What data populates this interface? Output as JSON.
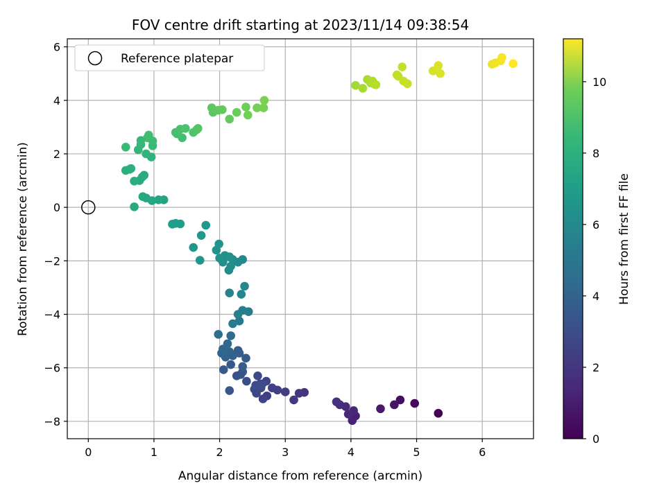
{
  "chart_data": {
    "type": "scatter",
    "title": "FOV centre drift starting at 2023/11/14 09:38:54",
    "xlabel": "Angular distance from reference (arcmin)",
    "ylabel": "Rotation from reference (arcmin)",
    "xlim": [
      -0.32,
      6.78
    ],
    "ylim": [
      -8.65,
      6.3
    ],
    "xticks": [
      0,
      1,
      2,
      3,
      4,
      5,
      6
    ],
    "yticks": [
      -8,
      -6,
      -4,
      -2,
      0,
      2,
      4,
      6
    ],
    "grid": true,
    "legend": {
      "placement": "top-left",
      "entries": [
        "Reference platepar"
      ]
    },
    "reference_point": {
      "x": 0,
      "y": 0
    },
    "colorbar": {
      "label": "Hours from first FF file",
      "colormap": "viridis",
      "range": [
        0,
        11.2
      ],
      "ticks": [
        0,
        2,
        4,
        6,
        8,
        10
      ]
    },
    "series": [
      {
        "points": [
          [
            5.33,
            -7.7,
            0.0
          ],
          [
            4.97,
            -7.33,
            0.2
          ],
          [
            4.75,
            -7.2,
            0.4
          ],
          [
            4.66,
            -7.38,
            0.6
          ],
          [
            4.45,
            -7.53,
            0.8
          ],
          [
            4.07,
            -7.8,
            1.0
          ],
          [
            4.02,
            -7.97,
            1.1
          ],
          [
            4.04,
            -7.6,
            1.2
          ],
          [
            3.96,
            -7.73,
            1.3
          ],
          [
            3.92,
            -7.45,
            1.4
          ],
          [
            3.83,
            -7.38,
            1.5
          ],
          [
            3.78,
            -7.27,
            1.6
          ],
          [
            3.29,
            -6.92,
            1.7
          ],
          [
            3.21,
            -6.95,
            1.8
          ],
          [
            3.13,
            -7.2,
            1.9
          ],
          [
            3.0,
            -6.9,
            2.0
          ],
          [
            2.88,
            -6.83,
            2.1
          ],
          [
            2.8,
            -6.75,
            2.15
          ],
          [
            2.72,
            -7.05,
            2.2
          ],
          [
            2.66,
            -7.16,
            2.25
          ],
          [
            2.71,
            -6.5,
            2.3
          ],
          [
            2.62,
            -6.6,
            2.35
          ],
          [
            2.56,
            -6.95,
            2.4
          ],
          [
            2.53,
            -6.8,
            2.45
          ],
          [
            2.58,
            -6.3,
            2.5
          ],
          [
            2.63,
            -6.75,
            2.55
          ],
          [
            2.65,
            -6.6,
            2.6
          ],
          [
            2.55,
            -6.65,
            2.65
          ],
          [
            2.41,
            -6.5,
            2.7
          ],
          [
            2.32,
            -6.25,
            2.75
          ],
          [
            2.26,
            -6.3,
            2.8
          ],
          [
            2.35,
            -6.15,
            2.9
          ],
          [
            2.15,
            -6.85,
            3.0
          ],
          [
            2.17,
            -5.88,
            3.1
          ],
          [
            2.06,
            -6.07,
            3.15
          ],
          [
            2.4,
            -5.64,
            3.2
          ],
          [
            2.35,
            -5.95,
            3.25
          ],
          [
            2.28,
            -5.35,
            3.3
          ],
          [
            2.3,
            -5.45,
            3.35
          ],
          [
            2.2,
            -5.55,
            3.4
          ],
          [
            2.15,
            -5.4,
            3.5
          ],
          [
            2.09,
            -5.6,
            3.55
          ],
          [
            2.03,
            -5.45,
            3.6
          ],
          [
            2.05,
            -5.3,
            3.7
          ],
          [
            2.12,
            -5.1,
            3.8
          ],
          [
            2.17,
            -4.8,
            3.9
          ],
          [
            1.98,
            -4.75,
            4.0
          ],
          [
            2.3,
            -4.25,
            4.5
          ],
          [
            2.2,
            -4.35,
            4.6
          ],
          [
            2.44,
            -3.9,
            4.7
          ],
          [
            2.35,
            -3.85,
            4.8
          ],
          [
            2.28,
            -4.0,
            4.9
          ],
          [
            2.15,
            -3.2,
            5.0
          ],
          [
            2.33,
            -3.25,
            5.1
          ],
          [
            2.38,
            -2.95,
            5.2
          ],
          [
            2.35,
            -1.95,
            5.3
          ],
          [
            2.28,
            -2.05,
            5.35
          ],
          [
            2.14,
            -2.35,
            5.4
          ],
          [
            2.17,
            -2.2,
            5.45
          ],
          [
            2.2,
            -1.95,
            5.5
          ],
          [
            2.05,
            -2.05,
            5.55
          ],
          [
            2.15,
            -1.85,
            5.6
          ],
          [
            2.08,
            -1.8,
            5.65
          ],
          [
            2.0,
            -1.9,
            5.7
          ],
          [
            1.95,
            -1.6,
            5.75
          ],
          [
            1.99,
            -1.37,
            5.8
          ],
          [
            1.7,
            -1.98,
            5.85
          ],
          [
            1.6,
            -1.5,
            5.9
          ],
          [
            1.72,
            -1.05,
            5.95
          ],
          [
            1.79,
            -0.67,
            6.0
          ],
          [
            1.4,
            -0.62,
            6.1
          ],
          [
            1.33,
            -0.6,
            6.2
          ],
          [
            1.28,
            -0.63,
            6.25
          ],
          [
            1.15,
            0.28,
            6.5
          ],
          [
            1.07,
            0.28,
            6.55
          ],
          [
            0.97,
            0.25,
            6.6
          ],
          [
            0.88,
            0.35,
            6.65
          ],
          [
            0.83,
            0.4,
            6.7
          ],
          [
            0.7,
            0.02,
            6.75
          ],
          [
            0.85,
            1.2,
            6.8
          ],
          [
            0.82,
            1.13,
            6.85
          ],
          [
            0.78,
            1.0,
            6.9
          ],
          [
            0.7,
            0.98,
            6.95
          ],
          [
            0.57,
            1.38,
            7.0
          ],
          [
            0.63,
            1.42,
            7.05
          ],
          [
            0.65,
            1.45,
            7.1
          ],
          [
            0.96,
            1.88,
            7.2
          ],
          [
            0.88,
            2.0,
            7.3
          ],
          [
            0.76,
            2.15,
            7.4
          ],
          [
            0.8,
            2.35,
            7.45
          ],
          [
            0.8,
            2.5,
            7.5
          ],
          [
            0.57,
            2.25,
            7.55
          ],
          [
            0.98,
            2.3,
            7.6
          ],
          [
            0.98,
            2.48,
            7.65
          ],
          [
            0.9,
            2.6,
            7.7
          ],
          [
            0.92,
            2.7,
            7.75
          ],
          [
            1.43,
            2.6,
            7.8
          ],
          [
            1.35,
            2.75,
            7.85
          ],
          [
            1.33,
            2.8,
            7.9
          ],
          [
            1.4,
            2.92,
            7.95
          ],
          [
            1.48,
            2.95,
            8.0
          ],
          [
            1.6,
            2.8,
            8.05
          ],
          [
            1.65,
            2.9,
            8.1
          ],
          [
            1.67,
            2.95,
            8.15
          ],
          [
            1.9,
            3.55,
            8.3
          ],
          [
            1.88,
            3.72,
            8.35
          ],
          [
            1.98,
            3.63,
            8.4
          ],
          [
            2.04,
            3.65,
            8.45
          ],
          [
            2.15,
            3.3,
            8.5
          ],
          [
            2.26,
            3.55,
            8.6
          ],
          [
            2.4,
            3.75,
            8.7
          ],
          [
            2.43,
            3.45,
            8.75
          ],
          [
            2.57,
            3.72,
            8.8
          ],
          [
            2.67,
            3.72,
            8.85
          ],
          [
            2.68,
            4.0,
            8.9
          ],
          [
            4.07,
            4.56,
            9.6
          ],
          [
            4.18,
            4.45,
            9.7
          ],
          [
            4.25,
            4.78,
            9.75
          ],
          [
            4.3,
            4.65,
            9.8
          ],
          [
            4.36,
            4.6,
            9.85
          ],
          [
            4.33,
            4.72,
            9.9
          ],
          [
            4.38,
            4.58,
            9.95
          ],
          [
            4.7,
            4.95,
            10.1
          ],
          [
            4.72,
            4.9,
            10.15
          ],
          [
            4.78,
            5.25,
            10.2
          ],
          [
            4.8,
            4.72,
            10.25
          ],
          [
            4.86,
            4.62,
            10.3
          ],
          [
            5.25,
            5.1,
            10.5
          ],
          [
            5.33,
            5.3,
            10.55
          ],
          [
            5.36,
            5.0,
            10.6
          ],
          [
            6.15,
            5.35,
            10.9
          ],
          [
            6.2,
            5.4,
            10.95
          ],
          [
            6.28,
            5.48,
            11.0
          ],
          [
            6.3,
            5.6,
            11.1
          ],
          [
            6.47,
            5.37,
            11.2
          ]
        ]
      }
    ]
  }
}
